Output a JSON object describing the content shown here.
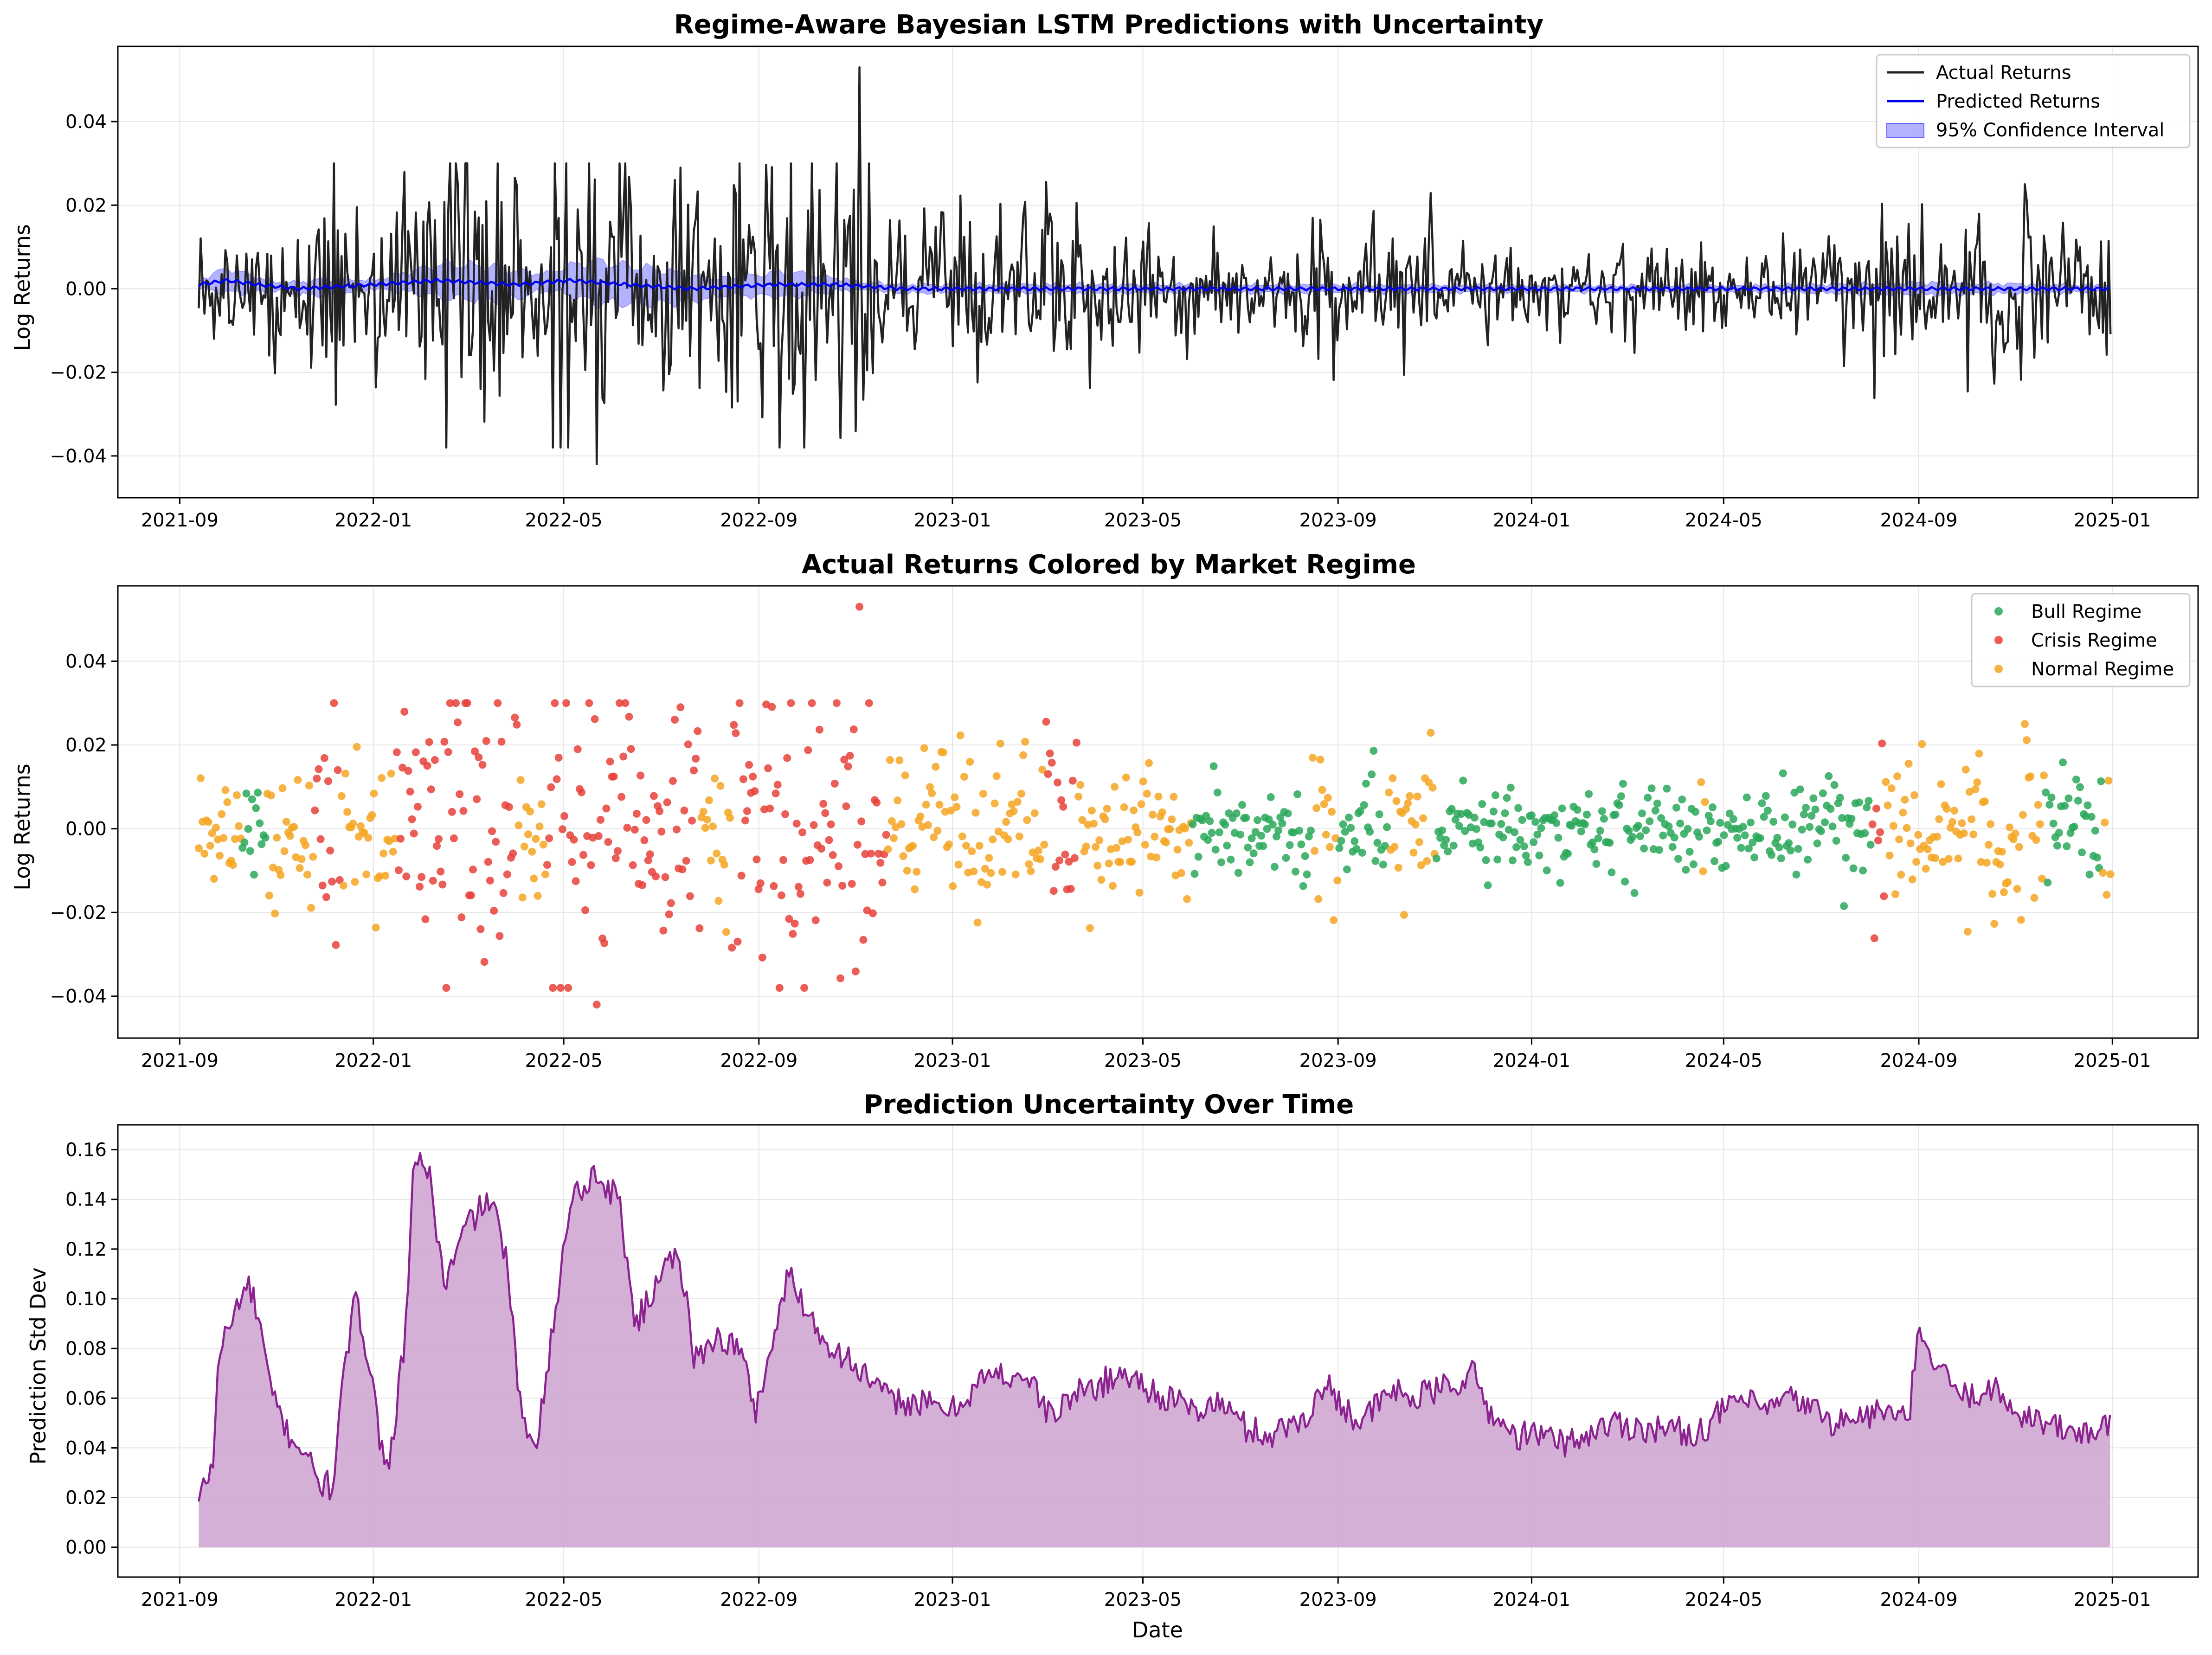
{
  "chart_data": [
    {
      "type": "line",
      "title": "Regime-Aware Bayesian LSTM Predictions with Uncertainty",
      "xlabel": "",
      "ylabel": "Log Returns",
      "xlim": [
        "2021-07-24",
        "2025-02-24"
      ],
      "ylim": [
        -0.05,
        0.058
      ],
      "x_ticks": [
        "2021-09",
        "2022-01",
        "2022-05",
        "2022-09",
        "2023-01",
        "2023-05",
        "2023-09",
        "2024-01",
        "2024-05",
        "2024-09",
        "2025-01"
      ],
      "y_ticks": [
        "−0.04",
        "−0.02",
        "0.00",
        "0.02",
        "0.04"
      ],
      "grid": true,
      "legend_position": "top-right",
      "series": [
        {
          "name": "Actual Returns",
          "color": "#222222",
          "kind": "line",
          "x_range": [
            "2021-09-13",
            "2024-12-31"
          ],
          "note_values": "daily series; range approx −0.045 to 0.053; extremes 0.053 at 2022-11-03, −0.045 at 2022-09-11, −0.042 at 2022-05-22"
        },
        {
          "name": "Predicted Returns",
          "color": "#0000ee",
          "kind": "line",
          "x": [
            "2021-09-13",
            "2021-10-01",
            "2021-10-20",
            "2021-11-15",
            "2022-01-01",
            "2022-02-10",
            "2022-04-01",
            "2022-05-05",
            "2022-06-10",
            "2022-07-20",
            "2022-09-10",
            "2022-10-20",
            "2022-12-01",
            "2023-03-01",
            "2023-07-01",
            "2024-01-01",
            "2024-07-01",
            "2024-12-31"
          ],
          "y": [
            0.001,
            0.002,
            0.001,
            0.0,
            0.001,
            0.002,
            0.001,
            0.002,
            0.001,
            0.0,
            0.001,
            0.001,
            0.0,
            0.0,
            0.0,
            0.0,
            0.0,
            0.0
          ]
        },
        {
          "name": "95% Confidence Interval",
          "color": "#6666ff",
          "kind": "band",
          "x": [
            "2021-09-13",
            "2021-10-01",
            "2021-11-01",
            "2021-12-01",
            "2022-01-01",
            "2022-02-15",
            "2022-03-20",
            "2022-04-20",
            "2022-05-20",
            "2022-07-01",
            "2022-08-10",
            "2022-09-20",
            "2022-11-01",
            "2023-01-01",
            "2023-06-01",
            "2024-01-01",
            "2024-06-01",
            "2024-09-01",
            "2024-12-31"
          ],
          "half_width": [
            0.001,
            0.003,
            0.001,
            0.002,
            0.001,
            0.004,
            0.004,
            0.002,
            0.005,
            0.004,
            0.002,
            0.003,
            0.001,
            0.001,
            0.001,
            0.0008,
            0.0008,
            0.0015,
            0.0008
          ]
        }
      ]
    },
    {
      "type": "scatter",
      "title": "Actual Returns Colored by Market Regime",
      "xlabel": "",
      "ylabel": "Log Returns",
      "xlim": [
        "2021-07-24",
        "2025-02-24"
      ],
      "ylim": [
        -0.05,
        0.058
      ],
      "x_ticks": [
        "2021-09",
        "2022-01",
        "2022-05",
        "2022-09",
        "2023-01",
        "2023-05",
        "2023-09",
        "2024-01",
        "2024-05",
        "2024-09",
        "2025-01"
      ],
      "y_ticks": [
        "−0.04",
        "−0.02",
        "0.00",
        "0.02",
        "0.04"
      ],
      "grid": true,
      "legend_position": "top-right",
      "series": [
        {
          "name": "Bull Regime",
          "color": "#2aa85a",
          "x_ranges": [
            [
              "2021-10-10",
              "2021-10-25"
            ],
            [
              "2023-06-01",
              "2023-08-15"
            ],
            [
              "2023-09-01",
              "2023-10-01"
            ],
            [
              "2023-11-01",
              "2024-04-15"
            ],
            [
              "2024-04-20",
              "2024-08-01"
            ],
            [
              "2024-11-20",
              "2024-12-25"
            ]
          ]
        },
        {
          "name": "Crisis Regime",
          "color": "#e8413a",
          "x_ranges": [
            [
              "2021-11-25",
              "2021-12-10"
            ],
            [
              "2022-01-15",
              "2022-04-01"
            ],
            [
              "2022-04-20",
              "2022-07-25"
            ],
            [
              "2022-08-15",
              "2022-11-20"
            ],
            [
              "2023-03-01",
              "2023-03-20"
            ],
            [
              "2024-07-25",
              "2024-08-10"
            ]
          ]
        },
        {
          "name": "Normal Regime",
          "color": "#f5a623",
          "x_ranges": [
            [
              "2021-09-13",
              "2021-10-10"
            ],
            [
              "2021-10-25",
              "2021-11-25"
            ],
            [
              "2021-12-10",
              "2022-01-15"
            ],
            [
              "2022-04-01",
              "2022-04-20"
            ],
            [
              "2022-07-25",
              "2022-08-15"
            ],
            [
              "2022-11-20",
              "2023-03-01"
            ],
            [
              "2023-03-20",
              "2023-06-01"
            ],
            [
              "2023-08-15",
              "2023-09-01"
            ],
            [
              "2023-10-01",
              "2023-11-01"
            ],
            [
              "2024-04-15",
              "2024-04-20"
            ],
            [
              "2024-08-01",
              "2024-11-20"
            ],
            [
              "2024-12-25",
              "2024-12-31"
            ]
          ]
        }
      ]
    },
    {
      "type": "area",
      "title": "Prediction Uncertainty Over Time",
      "xlabel": "Date",
      "ylabel": "Prediction Std Dev",
      "xlim": [
        "2021-07-24",
        "2025-02-24"
      ],
      "ylim": [
        -0.012,
        0.17
      ],
      "x_ticks": [
        "2021-09",
        "2022-01",
        "2022-05",
        "2022-09",
        "2023-01",
        "2023-05",
        "2023-09",
        "2024-01",
        "2024-05",
        "2024-09",
        "2025-01"
      ],
      "y_ticks": [
        "0.00",
        "0.02",
        "0.04",
        "0.06",
        "0.08",
        "0.10",
        "0.12",
        "0.14",
        "0.16"
      ],
      "grid": true,
      "series": [
        {
          "name": "",
          "line_color": "#8b2290",
          "fill_color": "#cfa6d2",
          "x": [
            "2021-09-13",
            "2021-09-22",
            "2021-09-26",
            "2021-10-05",
            "2021-10-08",
            "2021-10-15",
            "2021-10-22",
            "2021-10-28",
            "2021-11-08",
            "2021-11-20",
            "2021-11-25",
            "2021-11-28",
            "2021-12-06",
            "2021-12-12",
            "2021-12-20",
            "2022-01-01",
            "2022-01-05",
            "2022-01-12",
            "2022-01-22",
            "2022-01-27",
            "2022-02-05",
            "2022-02-15",
            "2022-03-01",
            "2022-03-15",
            "2022-03-25",
            "2022-04-05",
            "2022-04-14",
            "2022-04-25",
            "2022-05-05",
            "2022-05-20",
            "2022-06-05",
            "2022-06-15",
            "2022-06-25",
            "2022-07-05",
            "2022-07-15",
            "2022-07-22",
            "2022-08-05",
            "2022-08-20",
            "2022-08-30",
            "2022-09-20",
            "2022-10-10",
            "2022-11-01",
            "2022-11-20",
            "2022-12-10",
            "2023-01-01",
            "2023-01-20",
            "2023-02-15",
            "2023-03-05",
            "2023-03-15",
            "2023-04-01",
            "2023-04-20",
            "2023-05-10",
            "2023-06-01",
            "2023-06-20",
            "2023-07-05",
            "2023-07-20",
            "2023-08-10",
            "2023-08-25",
            "2023-09-15",
            "2023-10-05",
            "2023-10-20",
            "2023-11-10",
            "2023-11-25",
            "2023-12-05",
            "2023-12-20",
            "2024-01-05",
            "2024-01-25",
            "2024-02-20",
            "2024-03-15",
            "2024-04-15",
            "2024-05-10",
            "2024-05-25",
            "2024-06-15",
            "2024-07-10",
            "2024-07-25",
            "2024-08-10",
            "2024-08-25",
            "2024-09-01",
            "2024-09-15",
            "2024-10-01",
            "2024-10-15",
            "2024-11-01",
            "2024-11-20",
            "2024-12-05",
            "2024-12-31"
          ],
          "values": [
            0.018,
            0.035,
            0.08,
            0.092,
            0.1,
            0.105,
            0.088,
            0.063,
            0.046,
            0.038,
            0.028,
            0.026,
            0.024,
            0.06,
            0.1,
            0.07,
            0.04,
            0.037,
            0.09,
            0.16,
            0.15,
            0.105,
            0.13,
            0.14,
            0.12,
            0.048,
            0.045,
            0.09,
            0.14,
            0.15,
            0.14,
            0.09,
            0.1,
            0.12,
            0.11,
            0.075,
            0.085,
            0.08,
            0.055,
            0.11,
            0.085,
            0.073,
            0.06,
            0.058,
            0.055,
            0.068,
            0.07,
            0.052,
            0.06,
            0.065,
            0.07,
            0.062,
            0.055,
            0.058,
            0.048,
            0.045,
            0.052,
            0.065,
            0.05,
            0.063,
            0.06,
            0.065,
            0.07,
            0.055,
            0.045,
            0.045,
            0.042,
            0.05,
            0.048,
            0.046,
            0.06,
            0.055,
            0.06,
            0.05,
            0.052,
            0.055,
            0.05,
            0.085,
            0.07,
            0.06,
            0.065,
            0.055,
            0.05,
            0.046,
            0.048
          ]
        }
      ]
    }
  ]
}
